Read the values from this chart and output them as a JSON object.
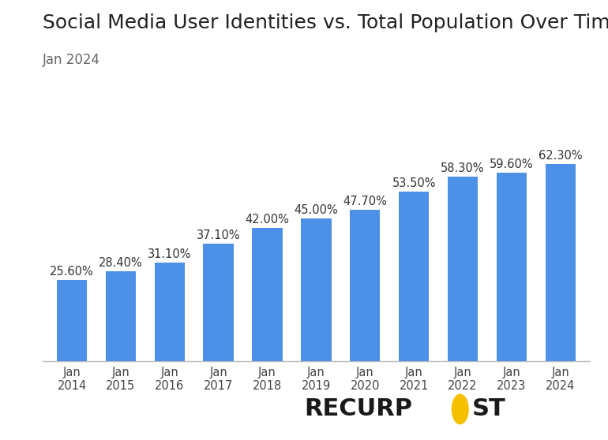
{
  "title": "Social Media User Identities vs. Total Population Over Time",
  "subtitle": "Jan 2024",
  "categories": [
    "Jan\n2014",
    "Jan\n2015",
    "Jan\n2016",
    "Jan\n2017",
    "Jan\n2018",
    "Jan\n2019",
    "Jan\n2020",
    "Jan\n2021",
    "Jan\n2022",
    "Jan\n2023",
    "Jan\n2024"
  ],
  "values": [
    25.6,
    28.4,
    31.1,
    37.1,
    42.0,
    45.0,
    47.7,
    53.5,
    58.3,
    59.6,
    62.3
  ],
  "labels": [
    "25.60%",
    "28.40%",
    "31.10%",
    "37.10%",
    "42.00%",
    "45.00%",
    "47.70%",
    "53.50%",
    "58.30%",
    "59.60%",
    "62.30%"
  ],
  "bar_color": "#4d90e8",
  "background_color": "#ffffff",
  "title_fontsize": 18,
  "subtitle_fontsize": 12,
  "label_fontsize": 10.5,
  "tick_fontsize": 10.5,
  "ylim": [
    0,
    78
  ],
  "title_color": "#222222",
  "subtitle_color": "#666666",
  "tick_color": "#444444",
  "label_color": "#333333",
  "logo_color": "#1a1a1a",
  "logo_circle_color": "#f5c000"
}
